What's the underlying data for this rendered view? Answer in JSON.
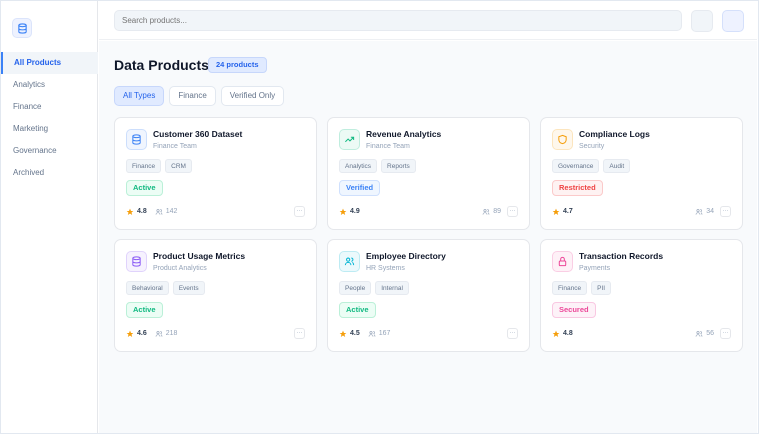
{
  "sidebar": {
    "logo_icon": "database-icon",
    "items": [
      {
        "label": "All Products",
        "active": true
      },
      {
        "label": "Analytics"
      },
      {
        "label": "Finance"
      },
      {
        "label": "Marketing"
      },
      {
        "label": "Governance"
      },
      {
        "label": "Archived"
      }
    ]
  },
  "header": {
    "search_placeholder": "Search products..."
  },
  "main": {
    "title": "Data Products",
    "count": "24 products",
    "filters": [
      {
        "label": "All Types",
        "active": true
      },
      {
        "label": "Finance"
      },
      {
        "label": "Verified Only"
      }
    ]
  },
  "cards": [
    {
      "name": "Customer 360 Dataset",
      "team": "Finance Team",
      "icon": "database-icon",
      "color": "#3b82f6",
      "tags": [
        "Finance",
        "CRM"
      ],
      "status": "Active",
      "rating": "4.8",
      "users": "142"
    },
    {
      "name": "Revenue Analytics",
      "team": "Finance Team",
      "icon": "trending-up-icon",
      "color": "#10b981",
      "tags": [
        "Analytics",
        "Reports"
      ],
      "status": "Verified",
      "rating": "4.9",
      "users": "89"
    },
    {
      "name": "Compliance Logs",
      "team": "Security",
      "icon": "shield-icon",
      "color": "#f59e0b",
      "tags": [
        "Governance",
        "Audit"
      ],
      "status": "Restricted",
      "rating": "4.7",
      "users": "34"
    },
    {
      "name": "Product Usage Metrics",
      "team": "Product Analytics",
      "icon": "database-icon",
      "color": "#8b5cf6",
      "tags": [
        "Behavioral",
        "Events"
      ],
      "status": "Active",
      "rating": "4.6",
      "users": "218"
    },
    {
      "name": "Employee Directory",
      "team": "HR Systems",
      "icon": "users-icon",
      "color": "#06b6d4",
      "tags": [
        "People",
        "Internal"
      ],
      "status": "Active",
      "rating": "4.5",
      "users": "167"
    },
    {
      "name": "Transaction Records",
      "team": "Payments",
      "icon": "lock-icon",
      "color": "#ec4899",
      "tags": [
        "Finance",
        "PII"
      ],
      "status": "Secured",
      "rating": "4.8",
      "users": "56"
    }
  ],
  "more_label": "···"
}
